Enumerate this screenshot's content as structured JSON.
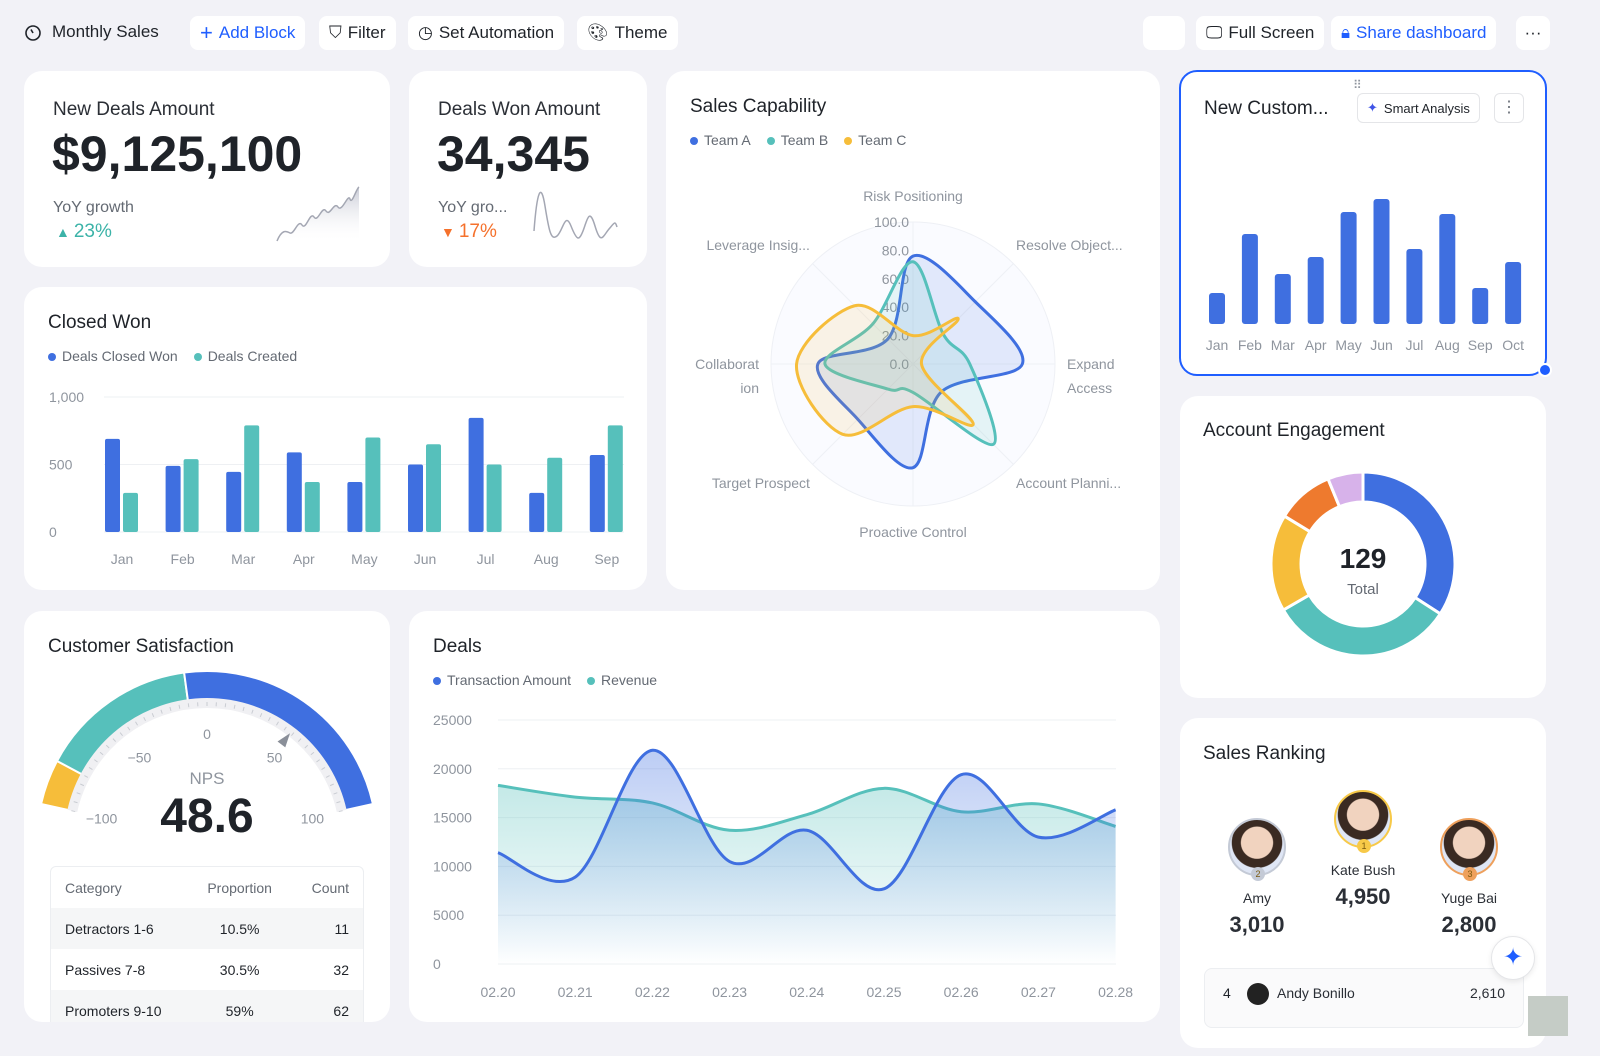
{
  "toolbar": {
    "title": "Monthly Sales",
    "add_block": "Add Block",
    "filter": "Filter",
    "automation": "Set Automation",
    "theme": "Theme",
    "full_screen": "Full Screen",
    "share": "Share dashboard",
    "more": "···"
  },
  "kpi1": {
    "label": "New Deals Amount",
    "value": "$9,125,100",
    "growth_label": "YoY growth",
    "growth": "23%",
    "direction": "up",
    "color": "#3cb3a8"
  },
  "kpi2": {
    "label": "Deals Won Amount",
    "value": "34,345",
    "growth_label": "YoY gro...",
    "growth": "17%",
    "direction": "down",
    "color": "#f5712c"
  },
  "colors": {
    "blue": "#3f6fe0",
    "teal": "#56c0bb",
    "yellow": "#f6bd3a",
    "orange": "#ee7a2e",
    "purple": "#d7b2ea",
    "accent": "#1f5eff"
  },
  "chart_data": [
    {
      "id": "sales-capability",
      "type": "radar",
      "title": "Sales Capability",
      "axes": [
        "Risk Positioning",
        "Resolve Object...",
        "Expand Access",
        "Account Planni...",
        "Proactive Control",
        "Target Prospect",
        "Collaboration",
        "Leverage Insig..."
      ],
      "ticks": [
        "0.0",
        "20.0",
        "40.0",
        "60.0",
        "80.0",
        "100.0"
      ],
      "range": [
        0,
        100
      ],
      "series": [
        {
          "name": "Team A",
          "values": [
            76,
            62,
            77,
            28,
            73,
            55,
            67,
            25
          ]
        },
        {
          "name": "Team B",
          "values": [
            72,
            30,
            40,
            80,
            20,
            25,
            62,
            40
          ]
        },
        {
          "name": "Team C",
          "values": [
            20,
            45,
            6,
            60,
            30,
            70,
            82,
            58
          ]
        }
      ]
    },
    {
      "id": "new-customers",
      "type": "bar",
      "title": "New Custom...",
      "categories": [
        "Jan",
        "Feb",
        "Mar",
        "Apr",
        "May",
        "Jun",
        "Jul",
        "Aug",
        "Sep",
        "Oct"
      ],
      "values": [
        31,
        90,
        50,
        67,
        112,
        125,
        75,
        110,
        36,
        62
      ]
    },
    {
      "id": "closed-won",
      "type": "bar",
      "title": "Closed Won",
      "categories": [
        "Jan",
        "Feb",
        "Mar",
        "Apr",
        "May",
        "Jun",
        "Jul",
        "Aug",
        "Sep"
      ],
      "yticks": [
        "0",
        "500",
        "1,000"
      ],
      "ylim": [
        0,
        1000
      ],
      "series": [
        {
          "name": "Deals Closed Won",
          "values": [
            690,
            490,
            445,
            590,
            370,
            500,
            845,
            290,
            570
          ]
        },
        {
          "name": "Deals Created",
          "values": [
            290,
            540,
            790,
            370,
            700,
            650,
            500,
            550,
            790
          ]
        }
      ]
    },
    {
      "id": "account-engagement",
      "type": "pie",
      "title": "Account Engagement",
      "total": "129",
      "total_label": "Total",
      "values": [
        44,
        42,
        22,
        13,
        8
      ]
    },
    {
      "id": "deals",
      "type": "area",
      "title": "Deals",
      "categories": [
        "02.20",
        "02.21",
        "02.22",
        "02.23",
        "02.24",
        "02.25",
        "02.26",
        "02.27",
        "02.28"
      ],
      "yticks": [
        "0",
        "5000",
        "10000",
        "15000",
        "20000",
        "25000"
      ],
      "ylim": [
        0,
        25000
      ],
      "series": [
        {
          "name": "Transaction Amount",
          "values": [
            11400,
            8900,
            21900,
            10500,
            13700,
            7700,
            19400,
            13000,
            15800
          ]
        },
        {
          "name": "Revenue",
          "values": [
            18300,
            17100,
            16500,
            13700,
            15300,
            18000,
            15600,
            16400,
            14100
          ]
        }
      ]
    },
    {
      "id": "nps",
      "type": "gauge",
      "title": "Customer Satisfaction",
      "label": "NPS",
      "value": 48.6,
      "value_text": "48.6",
      "range": [
        -100,
        100
      ],
      "ticks": [
        "−100",
        "−50",
        "0",
        "50",
        "100"
      ],
      "bands": [
        -100,
        -80,
        -10,
        100
      ]
    }
  ],
  "satisfaction_table": {
    "headers": [
      "Category",
      "Proportion",
      "Count"
    ],
    "rows": [
      [
        "Detractors 1-6",
        "10.5%",
        "11"
      ],
      [
        "Passives 7-8",
        "30.5%",
        "32"
      ],
      [
        "Promoters 9-10",
        "59%",
        "62"
      ]
    ]
  },
  "new_customers": {
    "smart_analysis": "Smart Analysis"
  },
  "ranking": {
    "title": "Sales Ranking",
    "podium": [
      {
        "rank": "2",
        "name": "Amy",
        "value": "3,010"
      },
      {
        "rank": "1",
        "name": "Kate Bush",
        "value": "4,950"
      },
      {
        "rank": "3",
        "name": "Yuge Bai",
        "value": "2,800"
      }
    ],
    "list": [
      {
        "rank": "4",
        "name": "Andy Bonillo",
        "value": "2,610"
      }
    ]
  }
}
